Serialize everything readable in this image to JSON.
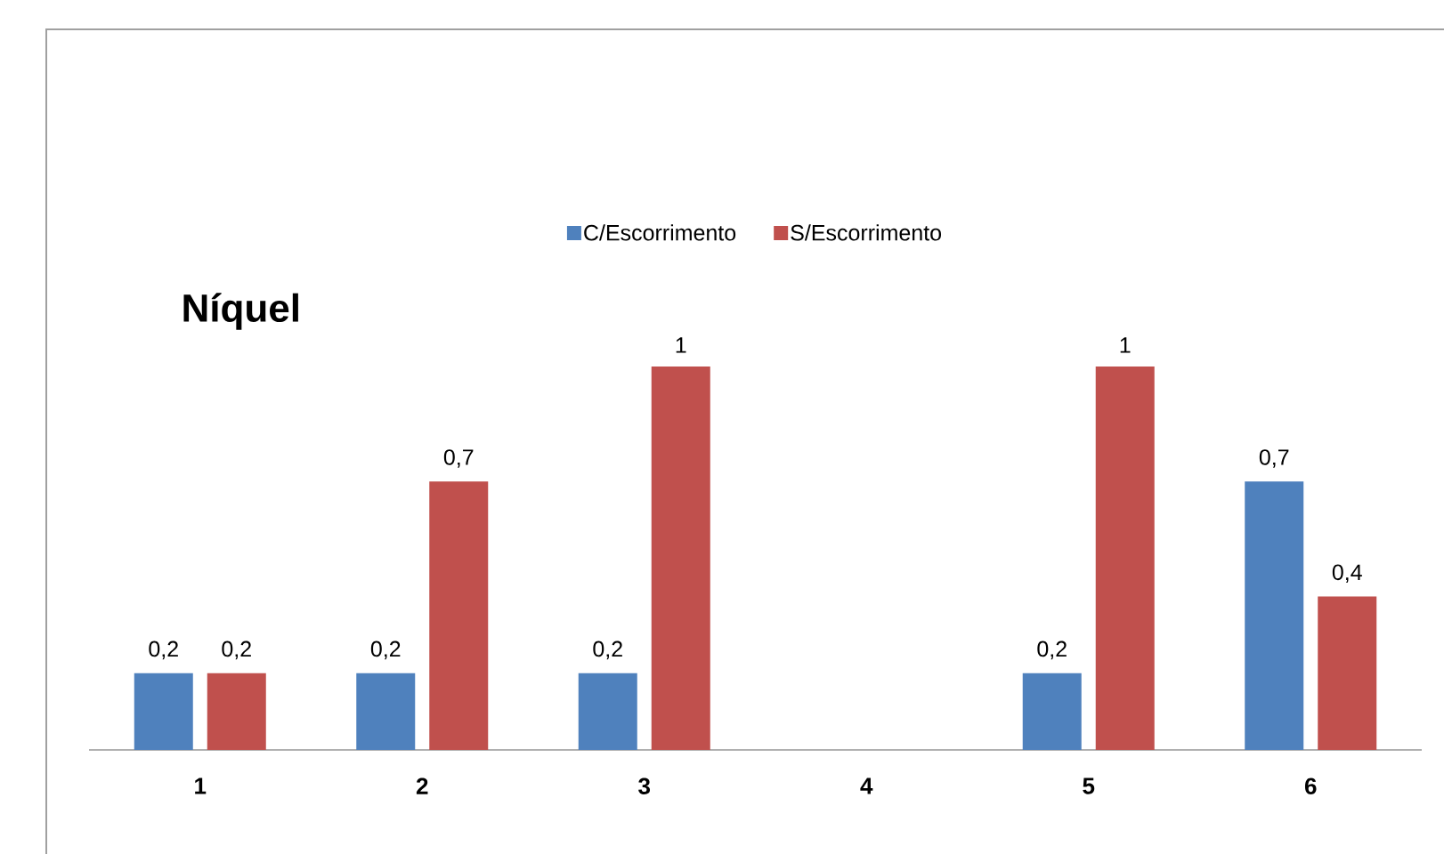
{
  "chart_data": {
    "type": "bar",
    "title": "Níquel",
    "categories": [
      "1",
      "2",
      "3",
      "4",
      "5",
      "6"
    ],
    "series": [
      {
        "name": "C/Escorrimento",
        "color": "#4f81bd",
        "values": [
          0.2,
          0.2,
          0.2,
          null,
          0.2,
          0.7
        ],
        "value_labels": [
          "0,2",
          "0,2",
          "0,2",
          null,
          "0,2",
          "0,7"
        ]
      },
      {
        "name": "S/Escorrimento",
        "color": "#c0504d",
        "values": [
          0.2,
          0.7,
          1,
          null,
          1,
          0.4
        ],
        "value_labels": [
          "0,2",
          "0,7",
          "1",
          null,
          "1",
          "0,4"
        ]
      }
    ],
    "legend": "top"
  }
}
